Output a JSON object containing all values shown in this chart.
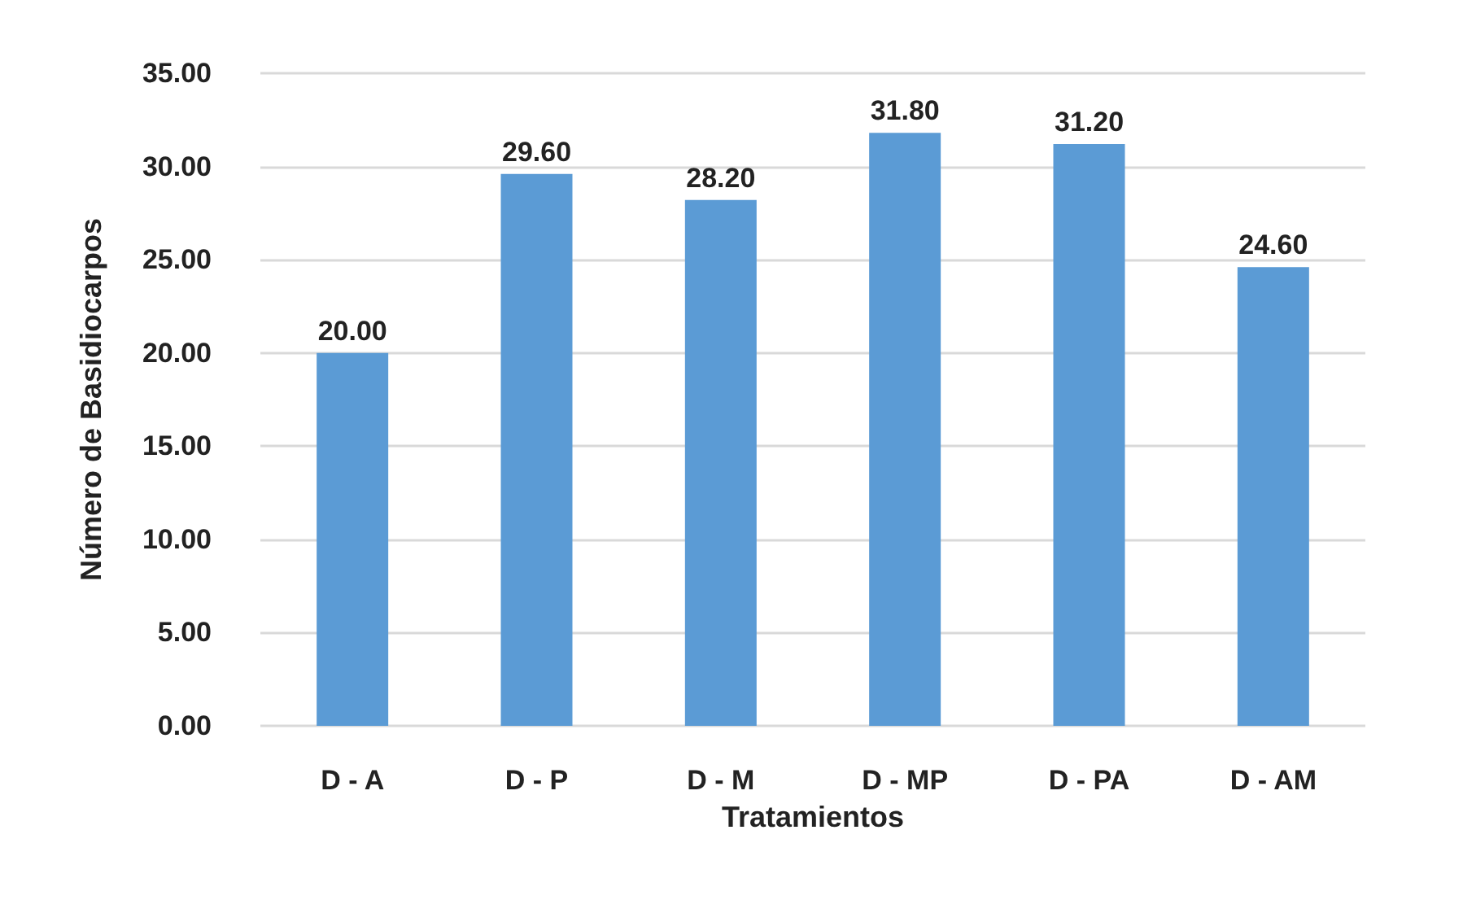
{
  "chart_data": {
    "type": "bar",
    "xlabel": "Tratamientos",
    "ylabel": "Número de Basidiocarpos",
    "categories": [
      "D - A",
      "D - P",
      "D - M",
      "D - MP",
      "D - PA",
      "D - AM"
    ],
    "values": [
      20,
      29.6,
      28.2,
      31.8,
      31.2,
      24.6
    ],
    "value_labels": [
      "20.00",
      "29.60",
      "28.20",
      "31.80",
      "31.20",
      "24.60"
    ],
    "color": "#5b9bd5",
    "ylim": [
      0,
      35
    ],
    "yticks": [
      {
        "value": 0,
        "label": "0.00"
      },
      {
        "value": 5,
        "label": "5.00"
      },
      {
        "value": 10,
        "label": "10.00"
      },
      {
        "value": 15,
        "label": "15.00"
      },
      {
        "value": 20,
        "label": "20.00"
      },
      {
        "value": 25,
        "label": "25.00"
      },
      {
        "value": 30,
        "label": "30.00"
      },
      {
        "value": 35,
        "label": "35.00"
      }
    ],
    "grid": "y"
  }
}
